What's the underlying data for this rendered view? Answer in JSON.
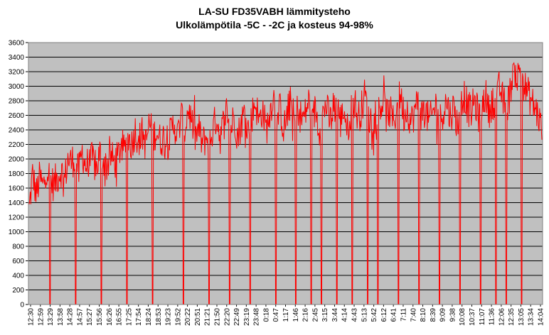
{
  "chart_data": {
    "type": "line",
    "title": "LA-SU FD35VABH lämmitysteho",
    "subtitle": "Ulkolämpötila  -5C - -2C ja kosteus 94-98%",
    "xlabel": "",
    "ylabel": "",
    "ylim": [
      0,
      3600
    ],
    "yticks": [
      0,
      200,
      400,
      600,
      800,
      1000,
      1200,
      1400,
      1600,
      1800,
      2000,
      2200,
      2400,
      2600,
      2800,
      3000,
      3200,
      3400,
      3600
    ],
    "x_tick_labels": [
      "12:30",
      "12:59",
      "13:29",
      "13:58",
      "14:28",
      "14:57",
      "15:27",
      "15:56",
      "16:26",
      "16:55",
      "17:25",
      "17:54",
      "18:24",
      "18:53",
      "19:23",
      "19:52",
      "20:22",
      "20:51",
      "21:21",
      "21:50",
      "22:20",
      "22:49",
      "23:19",
      "23:48",
      "0:18",
      "0:47",
      "1:17",
      "1:46",
      "2:16",
      "2:45",
      "3:15",
      "3:44",
      "4:14",
      "4:43",
      "5:13",
      "5:42",
      "6:12",
      "6:41",
      "7:11",
      "7:40",
      "8:10",
      "8:39",
      "9:09",
      "9:38",
      "10:08",
      "10:37",
      "11:07",
      "11:36",
      "12:06",
      "12:35",
      "13:05",
      "13:34",
      "14:04"
    ],
    "grid": true,
    "legend": "none",
    "colors": {
      "series": "#ff0000",
      "plot_background": "#c0c0c0",
      "grid": "#000000"
    },
    "series": [
      {
        "values": [
          1300,
          1800,
          1500,
          1750,
          1600,
          1900,
          1700,
          1650,
          1750,
          1850,
          1700,
          2000,
          1950,
          2050,
          1800,
          2100,
          1900,
          1950,
          2000,
          1850,
          2100,
          2000,
          1900,
          2050,
          1950,
          2000,
          2200,
          2100,
          2300,
          2200,
          2400,
          2250,
          2350,
          2200,
          2500,
          2300,
          2400,
          2250,
          2300,
          2200,
          2350,
          2500,
          2300,
          2600,
          2400,
          2700,
          2500,
          2300,
          2400,
          2200,
          2300,
          2250,
          2400,
          2600,
          2300,
          2500,
          2700,
          2400,
          2600,
          2300,
          2500,
          2650,
          2400,
          2600,
          2800,
          2500,
          2700,
          2400,
          2600,
          2900,
          2500,
          2700,
          2400,
          2600,
          2800,
          2500,
          2700,
          2550,
          2600,
          2800,
          2500,
          2700,
          2400,
          2600,
          2750,
          2500,
          2650,
          2800,
          2500,
          2700,
          2400,
          2650,
          2800,
          2550,
          2700,
          2900,
          2500,
          2600,
          2450,
          2700,
          2800,
          2600,
          2650,
          2500,
          2700,
          2900,
          2600,
          2700,
          2500,
          2650,
          2800,
          2600,
          2700,
          2500,
          2600,
          2750,
          2500,
          2650,
          2800,
          2600,
          2700,
          2500,
          2600,
          2900,
          2700,
          2650,
          2800,
          2600,
          2700,
          2900,
          2650,
          2800,
          2700,
          3000,
          2800,
          2700,
          2900,
          3300,
          3100,
          3250,
          3000,
          2900,
          2800,
          2700,
          2600,
          2400
        ]
      }
    ],
    "dropouts": [
      0.04,
      0.09,
      0.14,
      0.19,
      0.24,
      0.3,
      0.35,
      0.39,
      0.43,
      0.48,
      0.52,
      0.55,
      0.57,
      0.6,
      0.63,
      0.66,
      0.68,
      0.72,
      0.76,
      0.8,
      0.84,
      0.88,
      0.91,
      0.93,
      0.96
    ]
  }
}
